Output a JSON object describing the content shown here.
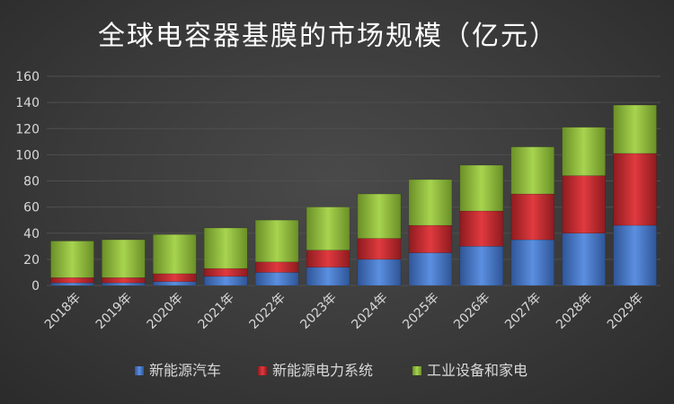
{
  "chart_data": {
    "type": "bar",
    "stacked": true,
    "title": "全球电容器基膜的市场规模（亿元）",
    "categories": [
      "2018年",
      "2019年",
      "2020年",
      "2021年",
      "2022年",
      "2023年",
      "2024年",
      "2025年",
      "2026年",
      "2027年",
      "2028年",
      "2029年"
    ],
    "series": [
      {
        "name": "新能源汽车",
        "color": "#4472c4",
        "values": [
          2,
          2,
          3,
          7,
          10,
          14,
          20,
          25,
          30,
          35,
          40,
          46
        ]
      },
      {
        "name": "新能源电力系统",
        "color": "#c0282d",
        "values": [
          4,
          4,
          6,
          6,
          8,
          13,
          16,
          21,
          27,
          35,
          44,
          55
        ]
      },
      {
        "name": "工业设备和家电",
        "color": "#8db63c",
        "values": [
          28,
          29,
          30,
          31,
          32,
          33,
          34,
          35,
          35,
          36,
          37,
          37
        ]
      }
    ],
    "ylim": [
      0,
      160
    ],
    "yticks": [
      "0",
      "20",
      "40",
      "60",
      "80",
      "100",
      "120",
      "140",
      "160"
    ],
    "legend_position": "bottom",
    "grid": true
  }
}
